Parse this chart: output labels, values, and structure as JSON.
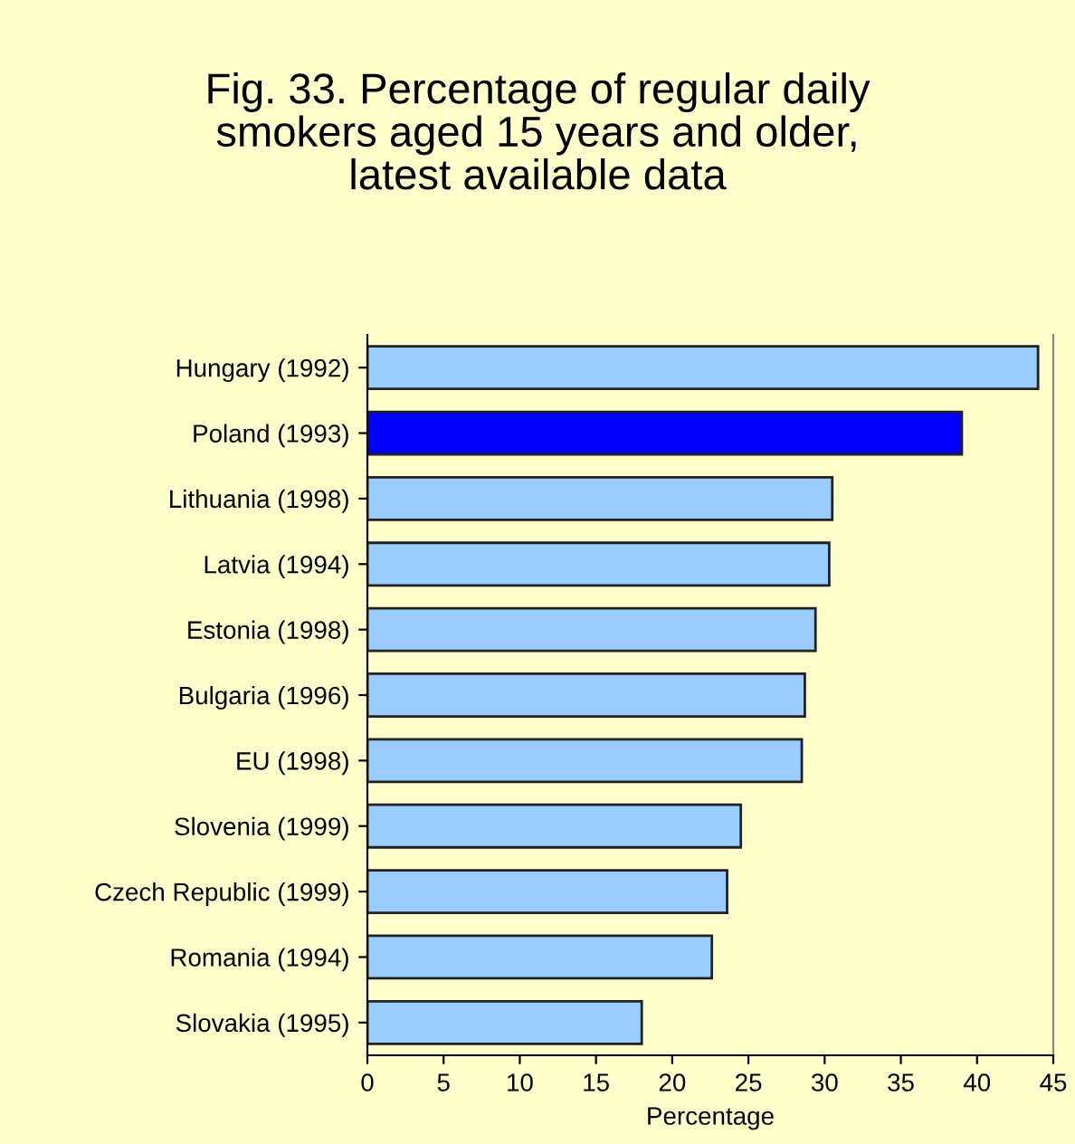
{
  "chart_data": {
    "type": "bar",
    "orientation": "horizontal",
    "title": "Fig. 33. Percentage of regular daily\nsmokers aged 15 years and older,\nlatest available data",
    "xlabel": "Percentage",
    "categories": [
      "Hungary (1992)",
      "Poland (1993)",
      "Lithuania (1998)",
      "Latvia (1994)",
      "Estonia (1998)",
      "Bulgaria (1996)",
      "EU (1998)",
      "Slovenia (1999)",
      "Czech Republic (1999)",
      "Romania (1994)",
      "Slovakia (1995)"
    ],
    "values": [
      44,
      39,
      30.5,
      30.3,
      29.4,
      28.7,
      28.5,
      24.5,
      23.6,
      22.6,
      18
    ],
    "colors": [
      "#99ccff",
      "#0000ff",
      "#99ccff",
      "#99ccff",
      "#99ccff",
      "#99ccff",
      "#99ccff",
      "#99ccff",
      "#99ccff",
      "#99ccff",
      "#99ccff"
    ],
    "xlim": [
      0,
      45
    ],
    "xticks": [
      0,
      5,
      10,
      15,
      20,
      25,
      30,
      35,
      40,
      45
    ],
    "grid": false,
    "legend": false
  }
}
